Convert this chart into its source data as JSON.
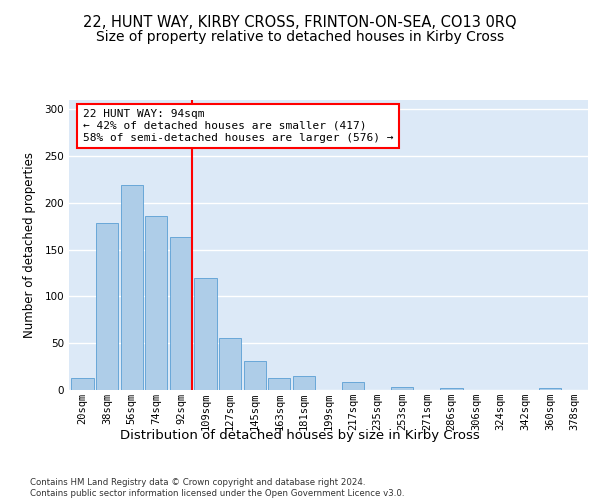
{
  "title1": "22, HUNT WAY, KIRBY CROSS, FRINTON-ON-SEA, CO13 0RQ",
  "title2": "Size of property relative to detached houses in Kirby Cross",
  "xlabel": "Distribution of detached houses by size in Kirby Cross",
  "ylabel": "Number of detached properties",
  "categories": [
    "20sqm",
    "38sqm",
    "56sqm",
    "74sqm",
    "92sqm",
    "109sqm",
    "127sqm",
    "145sqm",
    "163sqm",
    "181sqm",
    "199sqm",
    "217sqm",
    "235sqm",
    "253sqm",
    "271sqm",
    "286sqm",
    "306sqm",
    "324sqm",
    "342sqm",
    "360sqm",
    "378sqm"
  ],
  "values": [
    13,
    179,
    219,
    186,
    164,
    120,
    56,
    31,
    13,
    15,
    0,
    9,
    0,
    3,
    0,
    2,
    0,
    0,
    0,
    2,
    0
  ],
  "bar_color": "#aecde8",
  "bar_edge_color": "#5a9fd4",
  "vline_x_index": 4,
  "vline_color": "red",
  "annotation_text": "22 HUNT WAY: 94sqm\n← 42% of detached houses are smaller (417)\n58% of semi-detached houses are larger (576) →",
  "ylim": [
    0,
    310
  ],
  "yticks": [
    0,
    50,
    100,
    150,
    200,
    250,
    300
  ],
  "bg_color": "#dce9f7",
  "footer": "Contains HM Land Registry data © Crown copyright and database right 2024.\nContains public sector information licensed under the Open Government Licence v3.0.",
  "title1_fontsize": 10.5,
  "title2_fontsize": 10,
  "xlabel_fontsize": 9.5,
  "ylabel_fontsize": 8.5,
  "tick_fontsize": 7.5,
  "annot_fontsize": 8,
  "footer_fontsize": 6.2
}
